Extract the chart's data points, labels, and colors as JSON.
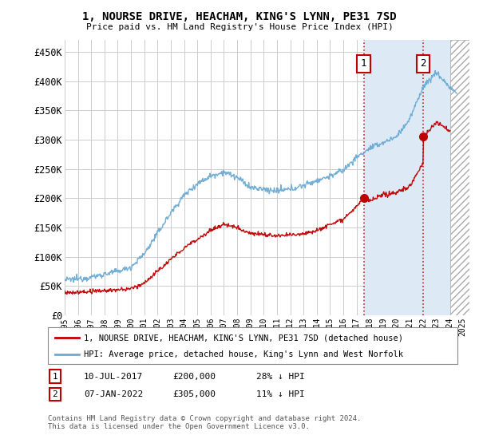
{
  "title": "1, NOURSE DRIVE, HEACHAM, KING'S LYNN, PE31 7SD",
  "subtitle": "Price paid vs. HM Land Registry's House Price Index (HPI)",
  "ylabel_ticks": [
    "£0",
    "£50K",
    "£100K",
    "£150K",
    "£200K",
    "£250K",
    "£300K",
    "£350K",
    "£400K",
    "£450K"
  ],
  "ytick_values": [
    0,
    50000,
    100000,
    150000,
    200000,
    250000,
    300000,
    350000,
    400000,
    450000
  ],
  "ylim": [
    0,
    470000
  ],
  "xlim_start": 1995.0,
  "xlim_end": 2025.5,
  "hpi_color": "#6aaad4",
  "price_color": "#c00000",
  "purchase1_date": 2017.53,
  "purchase1_price": 200000,
  "purchase2_date": 2022.03,
  "purchase2_price": 305000,
  "legend_label1": "1, NOURSE DRIVE, HEACHAM, KING'S LYNN, PE31 7SD (detached house)",
  "legend_label2": "HPI: Average price, detached house, King's Lynn and West Norfolk",
  "annotation1_date": "10-JUL-2017",
  "annotation1_price": "£200,000",
  "annotation1_hpi": "28% ↓ HPI",
  "annotation2_date": "07-JAN-2022",
  "annotation2_price": "£305,000",
  "annotation2_hpi": "11% ↓ HPI",
  "footer": "Contains HM Land Registry data © Crown copyright and database right 2024.\nThis data is licensed under the Open Government Licence v3.0.",
  "background_color": "#ffffff",
  "grid_color": "#cccccc",
  "hatch_region_start": 2024.08,
  "shade_region_start": 2017.53,
  "shade_region_end": 2024.08,
  "shade_color": "#ddeaf5"
}
